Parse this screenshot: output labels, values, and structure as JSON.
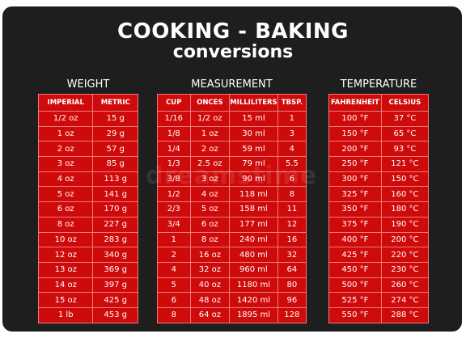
{
  "title_line1": "COOKING - BAKING",
  "title_line2": "conversions",
  "watermark": "dreamstime",
  "sections": {
    "weight": "WEIGHT",
    "measurement": "MEASUREMENT",
    "temperature": "TEMPERATURE"
  },
  "weight": {
    "headers": [
      "IMPERIAL",
      "METRIC"
    ],
    "rows": [
      [
        "1/2 oz",
        "15 g"
      ],
      [
        "1 oz",
        "29 g"
      ],
      [
        "2 oz",
        "57 g"
      ],
      [
        "3 oz",
        "85 g"
      ],
      [
        "4 oz",
        "113 g"
      ],
      [
        "5 oz",
        "141 g"
      ],
      [
        "6 oz",
        "170 g"
      ],
      [
        "8 oz",
        "227 g"
      ],
      [
        "10 oz",
        "283 g"
      ],
      [
        "12 oz",
        "340 g"
      ],
      [
        "13 oz",
        "369 g"
      ],
      [
        "14 oz",
        "397 g"
      ],
      [
        "15 oz",
        "425 g"
      ],
      [
        "1 lb",
        "453 g"
      ]
    ]
  },
  "measurement": {
    "headers": [
      "CUP",
      "ONCES",
      "MILLILITERS",
      "TBSP."
    ],
    "rows": [
      [
        "1/16",
        "1/2 oz",
        "15 ml",
        "1"
      ],
      [
        "1/8",
        "1 oz",
        "30 ml",
        "3"
      ],
      [
        "1/4",
        "2 oz",
        "59 ml",
        "4"
      ],
      [
        "1/3",
        "2.5 oz",
        "79 ml",
        "5.5"
      ],
      [
        "3/8",
        "3 oz",
        "90 ml",
        "6"
      ],
      [
        "1/2",
        "4 oz",
        "118 ml",
        "8"
      ],
      [
        "2/3",
        "5 oz",
        "158 ml",
        "11"
      ],
      [
        "3/4",
        "6 oz",
        "177 ml",
        "12"
      ],
      [
        "1",
        "8 oz",
        "240 ml",
        "16"
      ],
      [
        "2",
        "16 oz",
        "480 ml",
        "32"
      ],
      [
        "4",
        "32 oz",
        "960 ml",
        "64"
      ],
      [
        "5",
        "40 oz",
        "1180 ml",
        "80"
      ],
      [
        "6",
        "48 oz",
        "1420 ml",
        "96"
      ],
      [
        "8",
        "64 oz",
        "1895 ml",
        "128"
      ]
    ]
  },
  "temperature": {
    "headers": [
      "FAHRENHEIT",
      "CELSIUS"
    ],
    "rows": [
      [
        "100 °F",
        "37 °C"
      ],
      [
        "150 °F",
        "65 °C"
      ],
      [
        "200 °F",
        "93 °C"
      ],
      [
        "250 °F",
        "121 °C"
      ],
      [
        "300 °F",
        "150 °C"
      ],
      [
        "325 °F",
        "160 °C"
      ],
      [
        "350 °F",
        "180 °C"
      ],
      [
        "375 °F",
        "190 °C"
      ],
      [
        "400 °F",
        "200 °C"
      ],
      [
        "425 °F",
        "220 °C"
      ],
      [
        "450 °F",
        "230 °C"
      ],
      [
        "500 °F",
        "260 °C"
      ],
      [
        "525 °F",
        "274 °C"
      ],
      [
        "550 °F",
        "288 °C"
      ]
    ]
  },
  "colors": {
    "background": "#1e1e1e",
    "table_red": "#cf0a0a",
    "grid_line": "#f07a7a",
    "text": "#ffffff"
  }
}
